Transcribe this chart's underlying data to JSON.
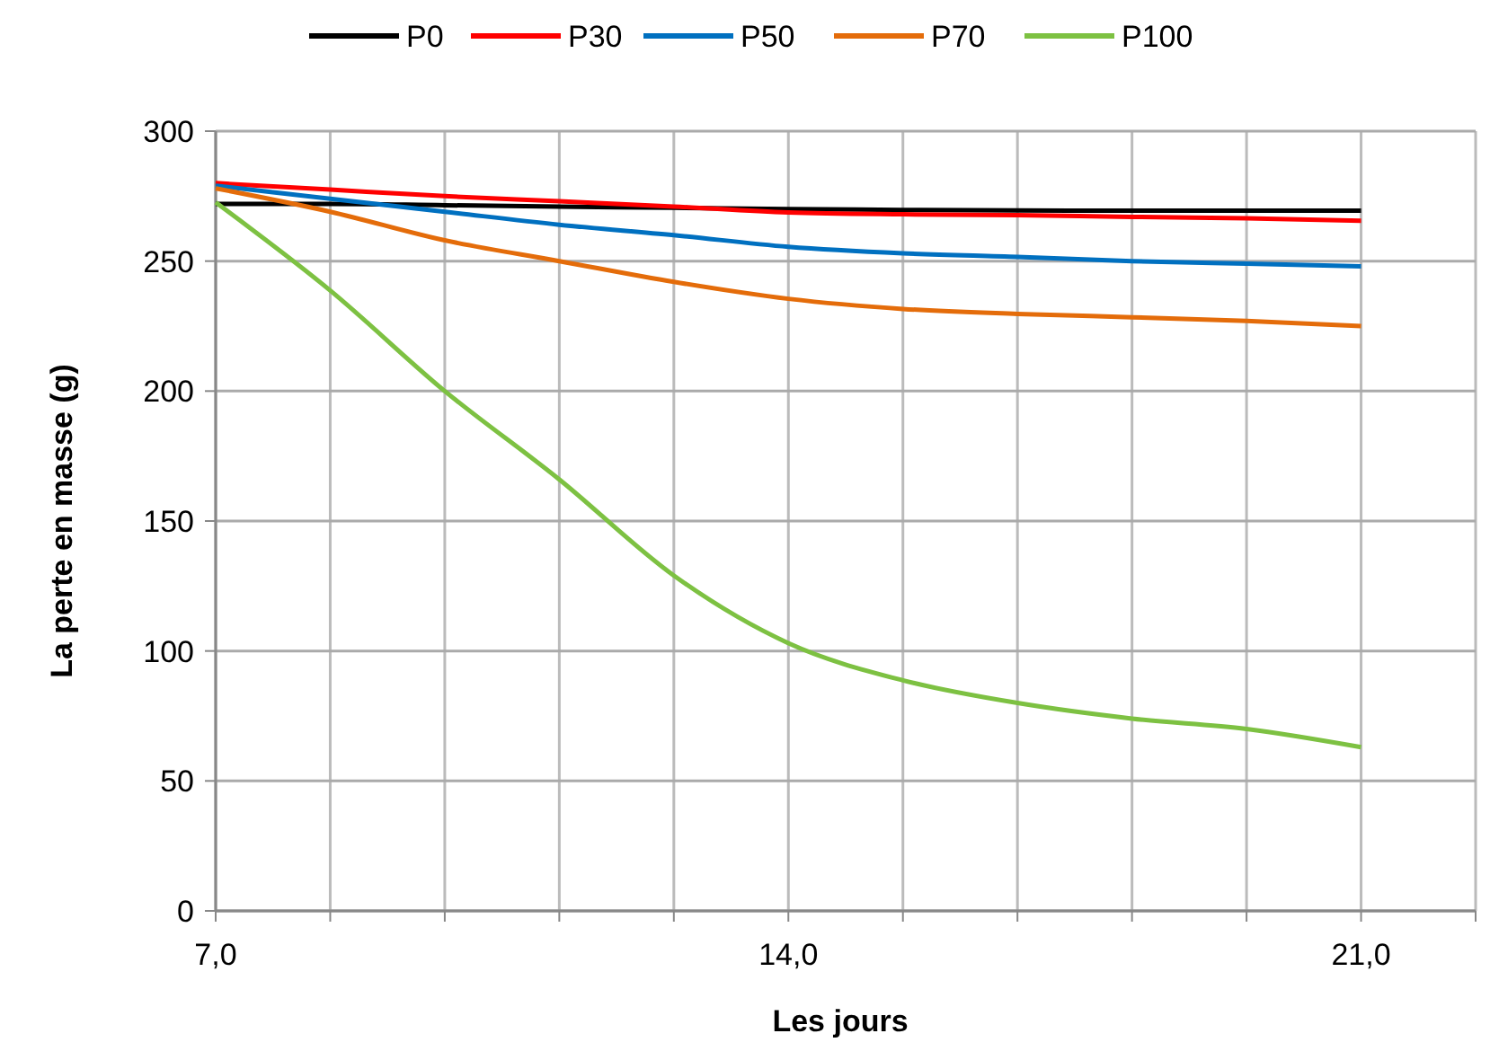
{
  "chart_data": {
    "type": "line",
    "xlabel": "Les jours",
    "ylabel": "La perte en masse (g)",
    "xlim": [
      7,
      22.4
    ],
    "ylim": [
      0,
      300
    ],
    "xticks": [
      {
        "value": 7,
        "label": "7,0"
      },
      {
        "value": 8.4,
        "label": null
      },
      {
        "value": 9.8,
        "label": null
      },
      {
        "value": 11.2,
        "label": null
      },
      {
        "value": 12.6,
        "label": null
      },
      {
        "value": 14,
        "label": "14,0"
      },
      {
        "value": 15.4,
        "label": null
      },
      {
        "value": 16.8,
        "label": null
      },
      {
        "value": 18.2,
        "label": null
      },
      {
        "value": 19.6,
        "label": null
      },
      {
        "value": 21,
        "label": "21,0"
      },
      {
        "value": 22.4,
        "label": null
      }
    ],
    "yticks": [
      0,
      50,
      100,
      150,
      200,
      250,
      300
    ],
    "grid": true,
    "legend": "top",
    "marker": "none",
    "line_style": "solid",
    "x": [
      7,
      8.4,
      9.8,
      11.2,
      12.6,
      14,
      15.4,
      16.8,
      18.2,
      19.6,
      21
    ],
    "series": [
      {
        "name": "P0",
        "color": "#000000",
        "values": [
          272,
          272,
          271.5,
          271,
          270.5,
          270,
          269.7,
          269.5,
          269.4,
          269.4,
          269.4
        ]
      },
      {
        "name": "P30",
        "color": "#ff0000",
        "values": [
          280,
          277.5,
          275,
          273,
          271,
          268.7,
          268,
          267.7,
          267,
          266.5,
          265.5
        ]
      },
      {
        "name": "P50",
        "color": "#0070c0",
        "values": [
          279,
          274,
          269,
          264,
          260,
          255.5,
          253,
          251.6,
          250,
          249,
          248
        ]
      },
      {
        "name": "P70",
        "color": "#e46c0a",
        "values": [
          278,
          269,
          258,
          250,
          242,
          235.5,
          231.6,
          229.7,
          228.4,
          227,
          225
        ]
      },
      {
        "name": "P100",
        "color": "#7dc142",
        "values": [
          272.6,
          238.7,
          200,
          166,
          129,
          103,
          88.7,
          80,
          74,
          70,
          63
        ]
      }
    ]
  }
}
